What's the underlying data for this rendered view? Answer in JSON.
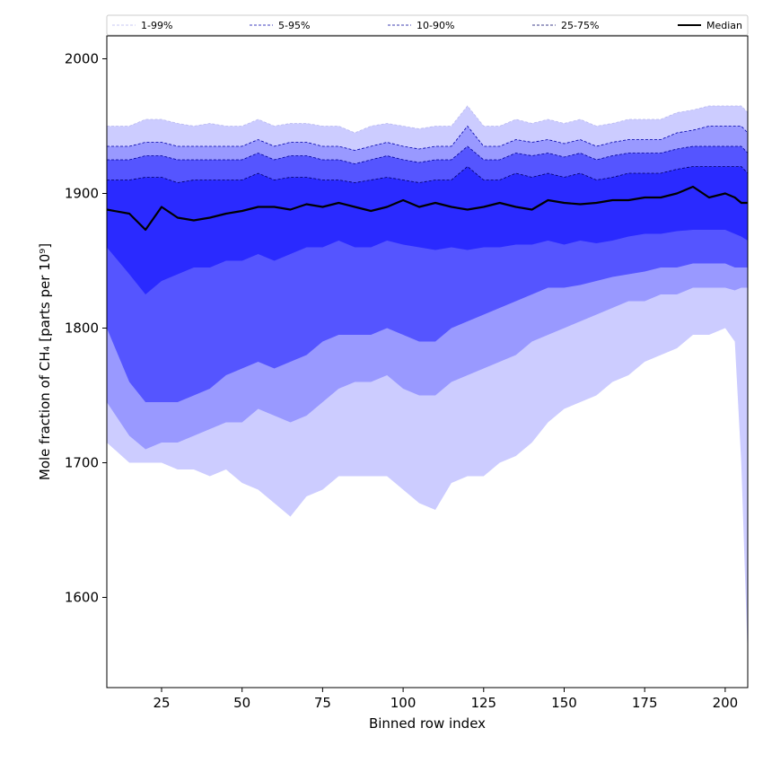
{
  "chart_data": {
    "type": "area",
    "title": "",
    "xlabel": "Binned row index",
    "ylabel": "Mole fraction of CH₄ [parts per 10⁹]",
    "xlim": [
      8,
      207
    ],
    "ylim": [
      1533,
      2017
    ],
    "xticks": [
      25,
      50,
      75,
      100,
      125,
      150,
      175,
      200
    ],
    "yticks": [
      1600,
      1700,
      1800,
      1900,
      2000
    ],
    "grid": false,
    "legend_position": "top",
    "x": [
      8,
      15,
      20,
      25,
      30,
      35,
      40,
      45,
      50,
      55,
      60,
      65,
      70,
      75,
      80,
      85,
      90,
      95,
      100,
      105,
      110,
      115,
      120,
      125,
      130,
      135,
      140,
      145,
      150,
      155,
      160,
      165,
      170,
      175,
      180,
      185,
      190,
      195,
      200,
      203,
      205,
      207
    ],
    "bands": [
      {
        "name": "1-99%",
        "fill": "#ccccff",
        "edge": "#b8b8f0",
        "lower": [
          1715,
          1700,
          1700,
          1700,
          1695,
          1695,
          1690,
          1695,
          1685,
          1680,
          1670,
          1660,
          1675,
          1680,
          1690,
          1690,
          1690,
          1690,
          1680,
          1670,
          1665,
          1685,
          1690,
          1690,
          1700,
          1705,
          1715,
          1730,
          1740,
          1745,
          1750,
          1760,
          1765,
          1775,
          1780,
          1785,
          1795,
          1795,
          1800,
          1790,
          1700,
          1555
        ],
        "upper": [
          1950,
          1950,
          1955,
          1955,
          1952,
          1950,
          1952,
          1950,
          1950,
          1955,
          1950,
          1952,
          1952,
          1950,
          1950,
          1945,
          1950,
          1952,
          1950,
          1948,
          1950,
          1950,
          1965,
          1950,
          1950,
          1955,
          1952,
          1955,
          1952,
          1955,
          1950,
          1952,
          1955,
          1955,
          1955,
          1960,
          1962,
          1965,
          1965,
          1965,
          1965,
          1960
        ]
      },
      {
        "name": "5-95%",
        "fill": "#9999ff",
        "edge": "#0000aa",
        "lower": [
          1745,
          1720,
          1710,
          1715,
          1715,
          1720,
          1725,
          1730,
          1730,
          1740,
          1735,
          1730,
          1735,
          1745,
          1755,
          1760,
          1760,
          1765,
          1755,
          1750,
          1750,
          1760,
          1765,
          1770,
          1775,
          1780,
          1790,
          1795,
          1800,
          1805,
          1810,
          1815,
          1820,
          1820,
          1825,
          1825,
          1830,
          1830,
          1830,
          1828,
          1830,
          1830
        ],
        "upper": [
          1935,
          1935,
          1938,
          1938,
          1935,
          1935,
          1935,
          1935,
          1935,
          1940,
          1935,
          1938,
          1938,
          1935,
          1935,
          1932,
          1935,
          1938,
          1935,
          1933,
          1935,
          1935,
          1950,
          1935,
          1935,
          1940,
          1938,
          1940,
          1937,
          1940,
          1935,
          1938,
          1940,
          1940,
          1940,
          1945,
          1947,
          1950,
          1950,
          1950,
          1950,
          1945
        ]
      },
      {
        "name": "10-90%",
        "fill": "#5555ff",
        "edge": "#000099",
        "lower": [
          1800,
          1760,
          1745,
          1745,
          1745,
          1750,
          1755,
          1765,
          1770,
          1775,
          1770,
          1775,
          1780,
          1790,
          1795,
          1795,
          1795,
          1800,
          1795,
          1790,
          1790,
          1800,
          1805,
          1810,
          1815,
          1820,
          1825,
          1830,
          1830,
          1832,
          1835,
          1838,
          1840,
          1842,
          1845,
          1845,
          1848,
          1848,
          1848,
          1845,
          1845,
          1845
        ],
        "upper": [
          1925,
          1925,
          1928,
          1928,
          1925,
          1925,
          1925,
          1925,
          1925,
          1930,
          1925,
          1928,
          1928,
          1925,
          1925,
          1922,
          1925,
          1928,
          1925,
          1923,
          1925,
          1925,
          1935,
          1925,
          1925,
          1930,
          1928,
          1930,
          1927,
          1930,
          1925,
          1928,
          1930,
          1930,
          1930,
          1933,
          1935,
          1935,
          1935,
          1935,
          1935,
          1930
        ]
      },
      {
        "name": "25-75%",
        "fill": "#2a2aff",
        "edge": "#000066",
        "lower": [
          1860,
          1840,
          1825,
          1835,
          1840,
          1845,
          1845,
          1850,
          1850,
          1855,
          1850,
          1855,
          1860,
          1860,
          1865,
          1860,
          1860,
          1865,
          1862,
          1860,
          1858,
          1860,
          1858,
          1860,
          1860,
          1862,
          1862,
          1865,
          1862,
          1865,
          1863,
          1865,
          1868,
          1870,
          1870,
          1872,
          1873,
          1873,
          1873,
          1870,
          1868,
          1865
        ],
        "upper": [
          1910,
          1910,
          1912,
          1912,
          1908,
          1910,
          1910,
          1910,
          1910,
          1915,
          1910,
          1912,
          1912,
          1910,
          1910,
          1908,
          1910,
          1912,
          1910,
          1908,
          1910,
          1910,
          1920,
          1910,
          1910,
          1915,
          1912,
          1915,
          1912,
          1915,
          1910,
          1912,
          1915,
          1915,
          1915,
          1918,
          1920,
          1920,
          1920,
          1920,
          1920,
          1915
        ]
      }
    ],
    "series": [
      {
        "name": "Median",
        "color": "#000000",
        "values": [
          1888,
          1885,
          1873,
          1890,
          1882,
          1880,
          1882,
          1885,
          1887,
          1890,
          1890,
          1888,
          1892,
          1890,
          1893,
          1890,
          1887,
          1890,
          1895,
          1890,
          1893,
          1890,
          1888,
          1890,
          1893,
          1890,
          1888,
          1895,
          1893,
          1892,
          1893,
          1895,
          1895,
          1897,
          1897,
          1900,
          1905,
          1897,
          1900,
          1897,
          1893,
          1893
        ]
      }
    ],
    "legend": [
      "1-99%",
      "5-95%",
      "10-90%",
      "25-75%",
      "Median"
    ]
  }
}
